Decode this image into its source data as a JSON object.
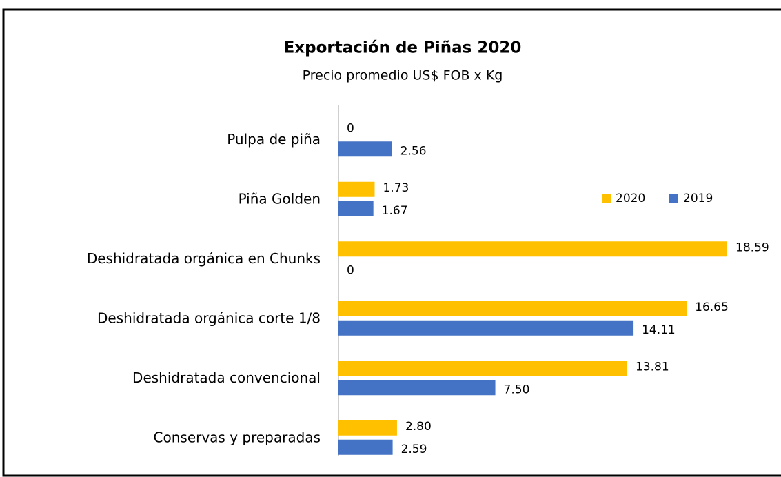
{
  "chart_data": {
    "type": "hbar",
    "title": "Exportación de Piñas 2020",
    "subtitle": "Precio promedio US$ FOB x Kg",
    "categories": [
      "Pulpa de piña",
      "Piña Golden",
      "Deshidratada orgánica en Chunks",
      "Deshidratada orgánica corte 1/8",
      "Deshidratada convencional",
      "Conservas y preparadas"
    ],
    "series": [
      {
        "name": "2020",
        "color": "#ffc000",
        "values": [
          0,
          1.73,
          18.59,
          16.65,
          13.81,
          2.8
        ],
        "value_labels": [
          "0",
          "1.73",
          "18.59",
          "16.65",
          "13.81",
          "2.80"
        ]
      },
      {
        "name": "2019",
        "color": "#4472c4",
        "values": [
          2.56,
          1.67,
          0,
          14.11,
          7.5,
          2.59
        ],
        "value_labels": [
          "2.56",
          "1.67",
          "0",
          "14.11",
          "7.50",
          "2.59"
        ]
      }
    ]
  }
}
